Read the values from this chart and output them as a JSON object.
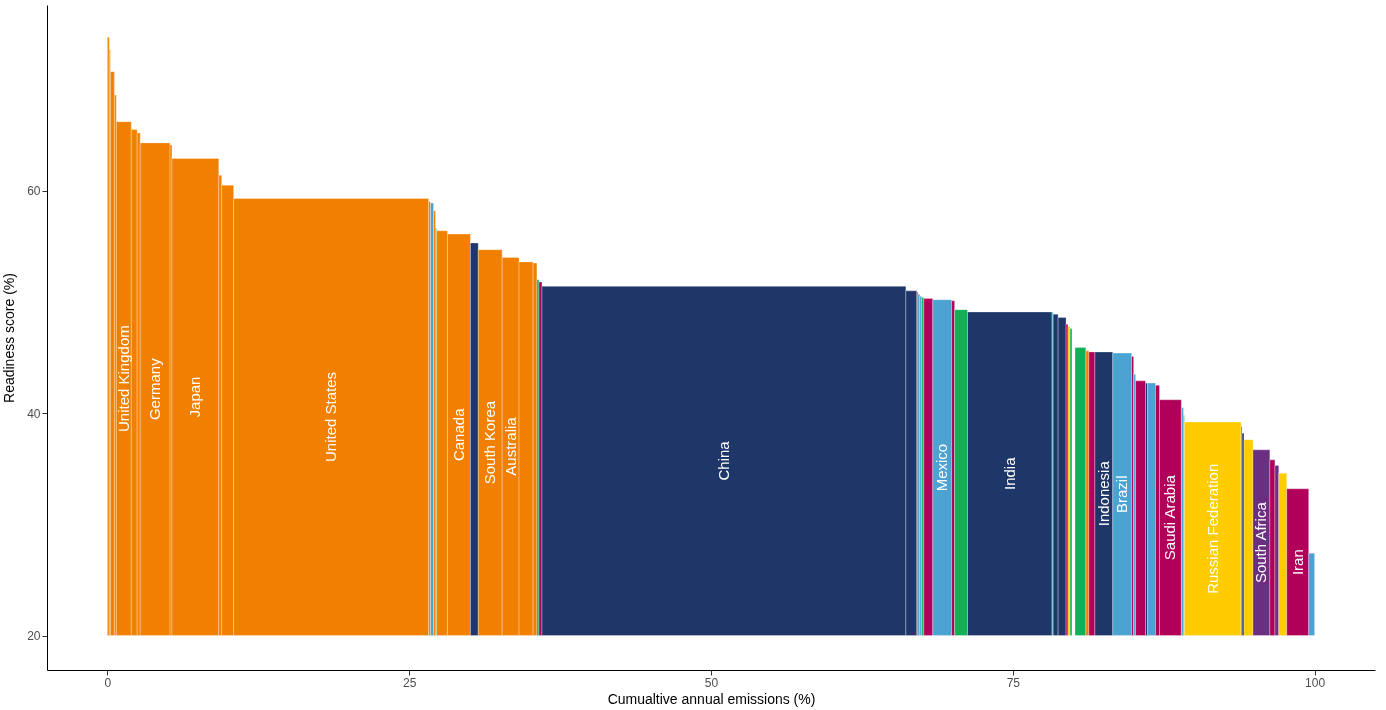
{
  "chart_data": {
    "type": "histogram",
    "xlabel": "Cumualtive annual emissions (%)",
    "ylabel": "Readiness score (%)",
    "bins": [
      0,
      0.16,
      0.25,
      0.58,
      0.74,
      1.98,
      2.47,
      2.72,
      5.19,
      5.35,
      9.23,
      9.47,
      10.46,
      26.61,
      26.77,
      27.02,
      27.18,
      27.27,
      28.17,
      30.07,
      30.72,
      32.7,
      34.1,
      35.26,
      35.58,
      35.75,
      36.0,
      66.14,
      67.05,
      67.13,
      67.3,
      67.46,
      67.63,
      68.37,
      69.93,
      70.18,
      71.25,
      78.25,
      78.34,
      78.75,
      79.41,
      79.57,
      79.74,
      79.9,
      80.15,
      81.05,
      81.3,
      81.8,
      83.28,
      84.84,
      85.01,
      85.17,
      85.99,
      86.16,
      86.82,
      87.15,
      88.96,
      89.13,
      89.21,
      93.9,
      93.99,
      94.15,
      94.89,
      96.29,
      96.71,
      97.03,
      97.69,
      99.51,
      100
    ],
    "base": [
      20,
      20,
      20,
      20,
      20,
      20,
      20,
      20,
      20,
      20,
      20,
      20,
      20,
      20,
      20,
      20,
      20,
      20,
      20,
      20,
      20,
      20,
      20,
      20,
      20,
      20,
      20,
      20,
      20,
      20,
      20,
      20,
      20,
      20,
      20,
      20,
      20,
      20,
      20,
      20,
      20,
      20,
      20,
      null,
      20,
      20,
      20,
      20,
      20,
      20,
      20,
      20,
      20,
      20,
      20,
      20,
      20,
      20,
      20,
      20,
      20,
      20,
      20,
      20,
      20,
      20,
      20,
      20
    ],
    "values": [
      53.8,
      52.7,
      50.7,
      48.6,
      46.2,
      45.5,
      45.2,
      44.3,
      44.1,
      42.9,
      41.4,
      40.5,
      39.3,
      39.0,
      38.9,
      38.2,
      36.6,
      36.4,
      36.1,
      35.3,
      34.7,
      34.0,
      33.6,
      33.5,
      32.0,
      31.8,
      31.4,
      31.0,
      30.9,
      30.7,
      30.5,
      30.4,
      30.3,
      30.2,
      30.1,
      29.3,
      29.1,
      29.1,
      28.9,
      28.6,
      28.0,
      27.8,
      27.6,
      null,
      25.9,
      25.6,
      25.5,
      25.5,
      25.4,
      25.1,
      23.5,
      22.9,
      22.7,
      22.7,
      22.5,
      21.2,
      20.5,
      19.8,
      19.2,
      18.8,
      18.2,
      17.6,
      16.7,
      15.8,
      15.3,
      14.6,
      13.2,
      7.4
    ],
    "colors": [
      "#f28000",
      "#f28000",
      "#f28000",
      "#f28000",
      "#f28000",
      "#f28000",
      "#f28000",
      "#f28000",
      "#f28000",
      "#f28000",
      "#f28000",
      "#f28000",
      "#f28000",
      "#f28000",
      "#4ba3d2",
      "#f28000",
      "#12b055",
      "#f28000",
      "#f28000",
      "#1f3768",
      "#f28000",
      "#f28000",
      "#f28000",
      "#f28000",
      "#12b055",
      "#b0005a",
      "#1f3768",
      "#1f3768",
      "#b0005a",
      "#4ba3d2",
      "#4ba3d2",
      "#12b055",
      "#b0005a",
      "#4ba3d2",
      "#b0005a",
      "#12b055",
      "#1f3768",
      "#4ba3d2",
      "#1f3768",
      "#1f3768",
      "#b0005a",
      "#ffcc00",
      "#12b055",
      null,
      "#12b055",
      "#f28000",
      "#b0005a",
      "#1f3768",
      "#4ba3d2",
      "#b0005a",
      "#4ba3d2",
      "#b0005a",
      "#1f3768",
      "#4ba3d2",
      "#b0005a",
      "#b0005a",
      "#4ba3d2",
      "#12b055",
      "#ffcc00",
      "#12b055",
      "#1f3768",
      "#ffcc00",
      "#6a2f80",
      "#b0005a",
      "#6a2f80",
      "#ffcc00",
      "#b0005a",
      "#4ba3d2"
    ],
    "xlim": [
      -5,
      105
    ],
    "xticks": [
      0,
      25,
      50,
      75,
      100
    ],
    "ylim": [
      16.9,
      76.7
    ],
    "yticks": [
      20,
      40,
      60
    ],
    "value_labels": [
      null,
      null,
      null,
      null,
      "United Kingdom",
      null,
      null,
      "Germany",
      null,
      "Japan",
      null,
      null,
      "United States",
      null,
      null,
      null,
      null,
      null,
      "Canada",
      null,
      "South Korea",
      "Australia",
      null,
      null,
      null,
      null,
      "China",
      null,
      null,
      null,
      null,
      null,
      null,
      "Mexico",
      null,
      null,
      "India",
      null,
      null,
      null,
      null,
      null,
      null,
      null,
      null,
      null,
      null,
      "Indonesia",
      "Brazil",
      null,
      null,
      null,
      null,
      null,
      null,
      "Saudi Arabia",
      null,
      null,
      "Russian Federation",
      null,
      null,
      null,
      "South Africa",
      null,
      null,
      null,
      "Iran",
      null
    ]
  }
}
